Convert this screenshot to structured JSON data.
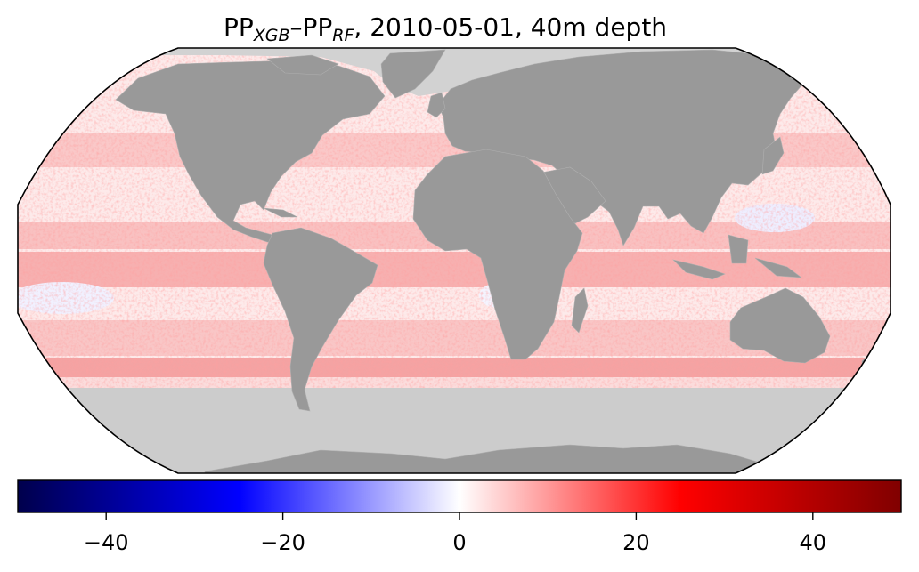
{
  "title": {
    "var_a": "PP",
    "sub_a": "XGB",
    "dash": "–",
    "var_b": "PP",
    "sub_b": "RF",
    "rest": ", 2010-05-01, 40m depth"
  },
  "colorbar": {
    "cmap": "seismic",
    "vmin": -50,
    "vmax": 50,
    "ticks": [
      {
        "value": -40,
        "label": "−40"
      },
      {
        "value": -20,
        "label": "−20"
      },
      {
        "value": 0,
        "label": "0"
      },
      {
        "value": 20,
        "label": "20"
      },
      {
        "value": 40,
        "label": "40"
      }
    ],
    "stops": [
      "#00004c",
      "#0000ff",
      "#ffffff",
      "#ff0000",
      "#800000"
    ]
  },
  "map": {
    "projection": "Robinson",
    "land_color": "#999999",
    "no_data_color": "#cccccc",
    "ocean_base_color": "#fdeaea",
    "band_color": "#f6a6a6",
    "negative_color": "#eeeeff"
  }
}
